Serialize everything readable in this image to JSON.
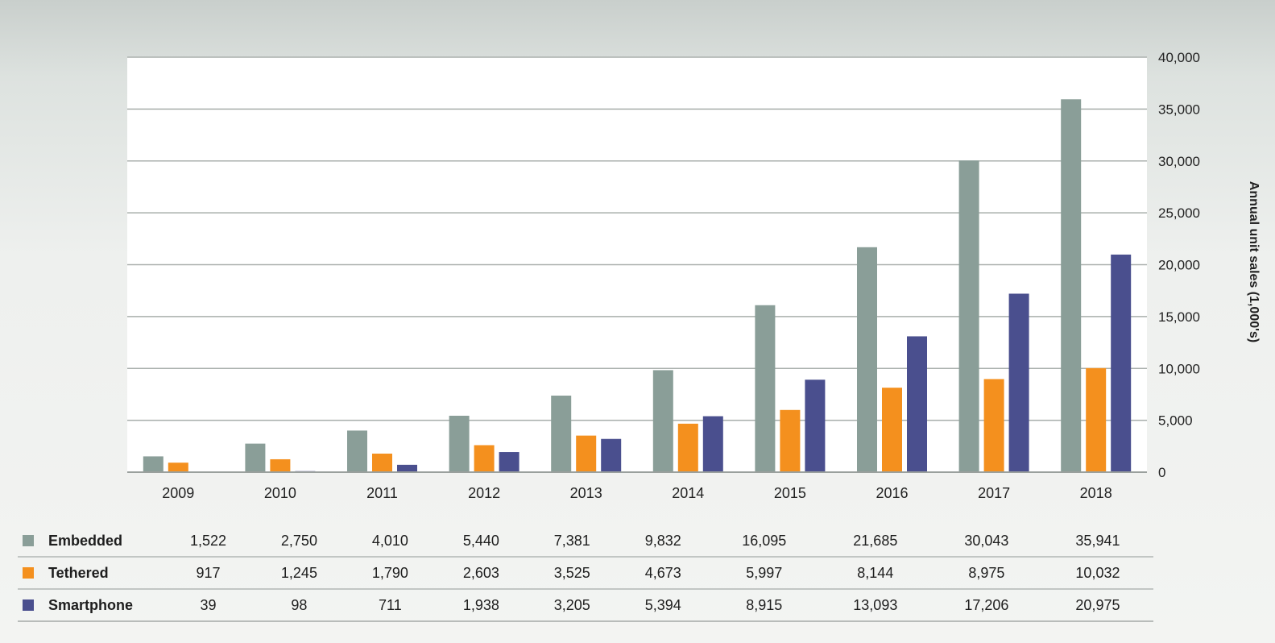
{
  "chart_data": {
    "type": "bar",
    "categories": [
      "2009",
      "2010",
      "2011",
      "2012",
      "2013",
      "2014",
      "2015",
      "2016",
      "2017",
      "2018"
    ],
    "series": [
      {
        "name": "Embedded",
        "color": "#8a9e98",
        "values": [
          1522,
          2750,
          4010,
          5440,
          7381,
          9832,
          16095,
          21685,
          30043,
          35941
        ],
        "labels": [
          "1,522",
          "2,750",
          "4,010",
          "5,440",
          "7,381",
          "9,832",
          "16,095",
          "21,685",
          "30,043",
          "35,941"
        ]
      },
      {
        "name": "Tethered",
        "color": "#f4901e",
        "values": [
          917,
          1245,
          1790,
          2603,
          3525,
          4673,
          5997,
          8144,
          8975,
          10032
        ],
        "labels": [
          "917",
          "1,245",
          "1,790",
          "2,603",
          "3,525",
          "4,673",
          "5,997",
          "8,144",
          "8,975",
          "10,032"
        ]
      },
      {
        "name": "Smartphone",
        "color": "#4a4f8e",
        "values": [
          39,
          98,
          711,
          1938,
          3205,
          5394,
          8915,
          13093,
          17206,
          20975
        ],
        "labels": [
          "39",
          "98",
          "711",
          "1,938",
          "3,205",
          "5,394",
          "8,915",
          "13,093",
          "17,206",
          "20,975"
        ]
      }
    ],
    "ylabel": "Annual unit sales (1,000's)",
    "ylim": [
      0,
      40000
    ],
    "yticks": [
      0,
      5000,
      10000,
      15000,
      20000,
      25000,
      30000,
      35000,
      40000
    ],
    "ytick_labels": [
      "0",
      "5,000",
      "10,000",
      "15,000",
      "20,000",
      "25,000",
      "30,000",
      "35,000",
      "40,000"
    ],
    "y_axis_side": "right",
    "grid": true,
    "legend": "data table below chart"
  }
}
